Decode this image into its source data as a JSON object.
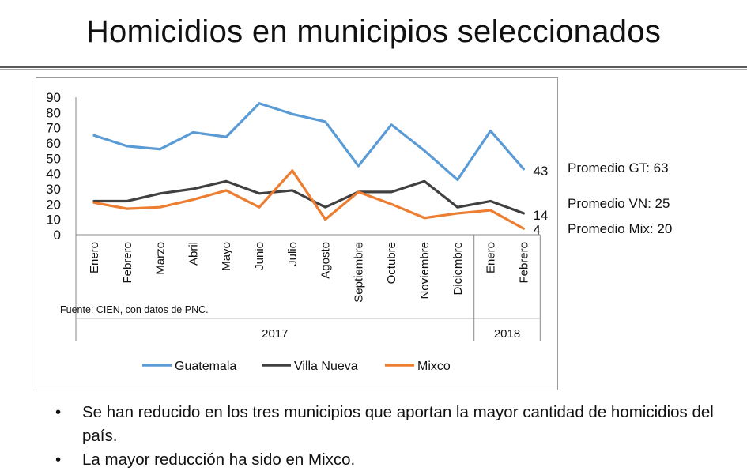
{
  "slide": {
    "title": "Homicidios en municipios seleccionados"
  },
  "averages": [
    "Promedio GT: 63",
    "Promedio VN: 25",
    "Promedio Mix: 20"
  ],
  "bullets": [
    "Se han reducido en los tres municipios que aportan la mayor cantidad de homicidios del país.",
    "La mayor reducción ha sido en Mixco."
  ],
  "bullet_symbol": "•",
  "chart_data": {
    "type": "line",
    "categories": [
      "Enero",
      "Febrero",
      "Marzo",
      "Abril",
      "Mayo",
      "Junio",
      "Julio",
      "Agosto",
      "Septiembre",
      "Octubre",
      "Noviembre",
      "Diciembre",
      "Enero",
      "Febrero"
    ],
    "year_groups": [
      {
        "label": "2017",
        "count": 12
      },
      {
        "label": "2018",
        "count": 2
      }
    ],
    "series": [
      {
        "name": "Guatemala",
        "color": "#5b9bd5",
        "values": [
          65,
          58,
          56,
          67,
          64,
          86,
          79,
          74,
          45,
          72,
          55,
          36,
          68,
          43
        ],
        "end_label": "43"
      },
      {
        "name": "Villa Nueva",
        "color": "#404040",
        "values": [
          22,
          22,
          27,
          30,
          35,
          27,
          29,
          18,
          28,
          28,
          35,
          18,
          22,
          14
        ],
        "end_label": "14"
      },
      {
        "name": "Mixco",
        "color": "#ed7d31",
        "values": [
          21,
          17,
          18,
          23,
          29,
          18,
          42,
          10,
          28,
          20,
          11,
          14,
          16,
          4
        ],
        "end_label": "4"
      }
    ],
    "yticks": [
      0,
      10,
      20,
      30,
      40,
      50,
      60,
      70,
      80,
      90
    ],
    "ylim": [
      0,
      90
    ],
    "source_note": "Fuente: CIEN, con datos de PNC.",
    "legend_position": "bottom"
  }
}
